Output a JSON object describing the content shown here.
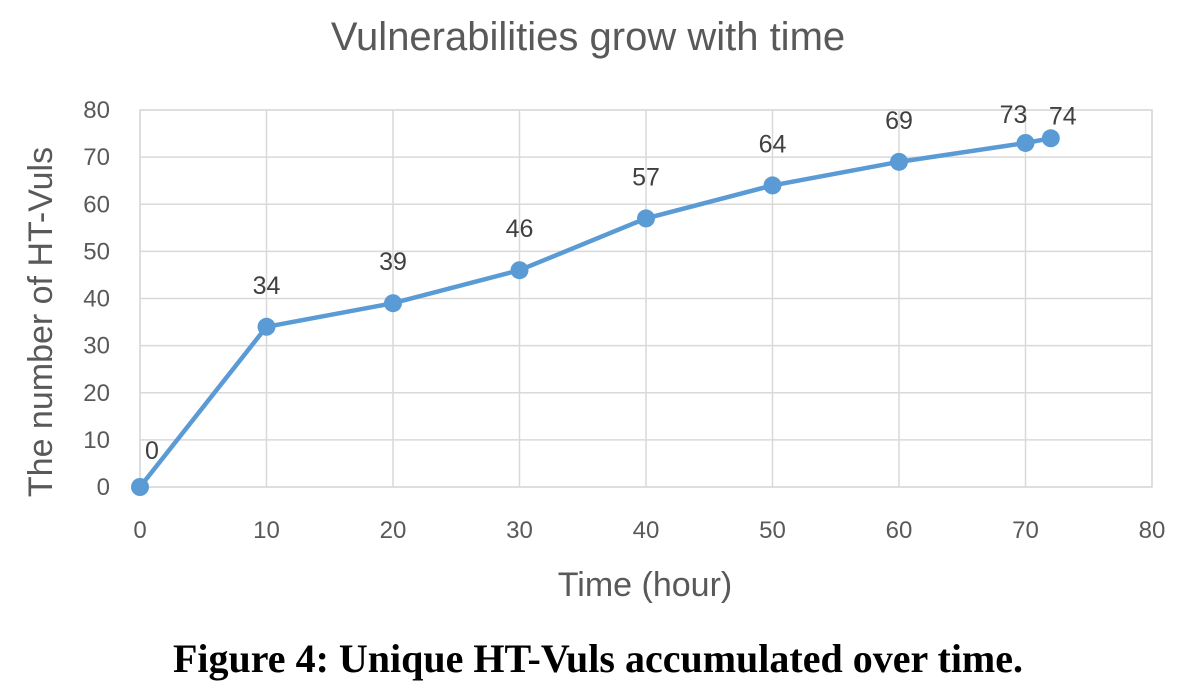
{
  "chart_data": {
    "type": "line",
    "title": "Vulnerabilities grow with time",
    "xlabel": "Time (hour)",
    "ylabel": "The number of HT-Vuls",
    "x": [
      0,
      10,
      20,
      30,
      40,
      50,
      60,
      70,
      72
    ],
    "series": [
      {
        "values": [
          0,
          34,
          39,
          46,
          57,
          64,
          69,
          73,
          74
        ],
        "color": "#5b9bd5"
      }
    ],
    "data_labels": [
      "0",
      "34",
      "39",
      "46",
      "57",
      "64",
      "69",
      "73",
      "74"
    ],
    "xlim": [
      0,
      80
    ],
    "ylim": [
      0,
      80
    ],
    "xticks": [
      0,
      10,
      20,
      30,
      40,
      50,
      60,
      70,
      80
    ],
    "yticks": [
      0,
      10,
      20,
      30,
      40,
      50,
      60,
      70,
      80
    ],
    "grid": true,
    "legend": "none"
  },
  "caption": "Figure 4: Unique HT-Vuls accumulated over time."
}
